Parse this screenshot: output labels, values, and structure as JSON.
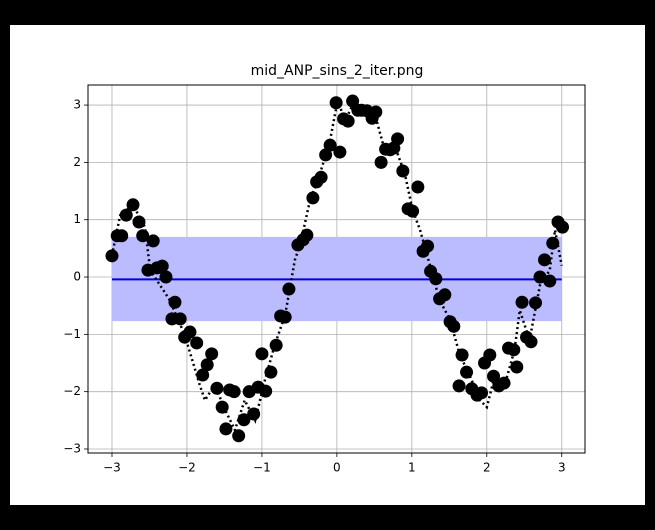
{
  "chart_data": {
    "type": "scatter",
    "title": "mid_ANP_sins_2_iter.png",
    "xlim": [
      -3.32,
      3.31
    ],
    "ylim": [
      -3.07,
      3.35
    ],
    "xticks": [
      {
        "value": -3,
        "label": "−3"
      },
      {
        "value": -2,
        "label": "−2"
      },
      {
        "value": -1,
        "label": "−1"
      },
      0,
      1,
      2,
      3
    ],
    "yticks": [
      {
        "value": -3,
        "label": "−3"
      },
      {
        "value": -2,
        "label": "−2"
      },
      {
        "value": -1,
        "label": "−1"
      },
      0,
      1,
      2,
      3
    ],
    "grid": true,
    "band": {
      "color": "#bbbbff",
      "x": [
        -3,
        3
      ],
      "lower": [
        -0.77,
        -0.77
      ],
      "upper": [
        0.7,
        0.7
      ]
    },
    "mean_line": {
      "color": "#0000dd",
      "x": [
        -3,
        3
      ],
      "y": [
        -0.04,
        -0.04
      ]
    },
    "dotted_line": {
      "color": "#000000",
      "x": [
        -3.0,
        -2.89,
        -2.72,
        -2.56,
        -2.49,
        -2.23,
        -2.03,
        -1.83,
        -1.76,
        -1.63,
        -1.49,
        -1.36,
        -1.23,
        -1.09,
        -0.96,
        -0.83,
        -0.69,
        -0.56,
        -0.49,
        -0.36,
        -0.23,
        -0.09,
        0.01,
        0.11,
        0.24,
        0.37,
        0.51,
        0.64,
        0.77,
        0.91,
        1.01,
        1.11,
        1.24,
        1.37,
        1.51,
        1.64,
        1.77,
        1.91,
        2.0,
        2.11,
        2.24,
        2.37,
        2.44,
        2.57,
        2.71,
        2.84,
        2.91,
        3.0
      ],
      "y": [
        0.38,
        1.08,
        1.26,
        0.87,
        0.12,
        -0.4,
        -1.01,
        -1.88,
        -2.15,
        -1.88,
        -2.32,
        -2.67,
        -2.15,
        -2.5,
        -1.8,
        -1.19,
        -0.66,
        0.3,
        0.56,
        1.33,
        1.78,
        2.39,
        3.08,
        2.73,
        3.08,
        2.83,
        2.83,
        2.2,
        2.3,
        1.78,
        1.17,
        0.82,
        0.21,
        -0.4,
        -0.75,
        -1.36,
        -1.71,
        -2.15,
        -2.27,
        -1.71,
        -1.88,
        -1.27,
        -0.58,
        -1.1,
        -0.14,
        0.12,
        0.82,
        0.2
      ]
    },
    "points": {
      "color": "#000000",
      "x": [
        -3.0,
        -2.93,
        -2.87,
        -2.81,
        -2.72,
        -2.64,
        -2.59,
        -2.52,
        -2.45,
        -2.4,
        -2.33,
        -2.28,
        -2.2,
        -2.16,
        -2.09,
        -2.03,
        -1.96,
        -1.87,
        -1.79,
        -1.73,
        -1.67,
        -1.6,
        -1.53,
        -1.48,
        -1.43,
        -1.37,
        -1.31,
        -1.24,
        -1.17,
        -1.11,
        -1.05,
        -1.0,
        -0.95,
        -0.88,
        -0.81,
        -0.75,
        -0.69,
        -0.64,
        -0.52,
        -0.45,
        -0.4,
        -0.32,
        -0.27,
        -0.21,
        -0.15,
        -0.09,
        -0.01,
        0.04,
        0.09,
        0.15,
        0.21,
        0.28,
        0.33,
        0.4,
        0.47,
        0.52,
        0.59,
        0.65,
        0.71,
        0.76,
        0.81,
        0.88,
        0.95,
        1.01,
        1.08,
        1.15,
        1.21,
        1.25,
        1.32,
        1.37,
        1.44,
        1.51,
        1.56,
        1.63,
        1.67,
        1.73,
        1.8,
        1.87,
        1.93,
        1.97,
        2.04,
        2.09,
        2.16,
        2.23,
        2.29,
        2.36,
        2.4,
        2.47,
        2.53,
        2.59,
        2.65,
        2.71,
        2.77,
        2.84,
        2.88,
        2.95,
        3.01
      ],
      "y": [
        0.37,
        0.72,
        0.72,
        1.08,
        1.26,
        0.96,
        0.72,
        0.12,
        0.63,
        0.16,
        0.19,
        0.0,
        -0.73,
        -0.44,
        -0.73,
        -1.05,
        -0.96,
        -1.15,
        -1.71,
        -1.53,
        -1.34,
        -1.94,
        -2.27,
        -2.65,
        -1.97,
        -2.0,
        -2.77,
        -2.49,
        -2.0,
        -2.39,
        -1.92,
        -1.34,
        -1.99,
        -1.66,
        -1.19,
        -0.68,
        -0.7,
        -0.21,
        0.56,
        0.65,
        0.73,
        1.38,
        1.66,
        1.74,
        2.13,
        2.3,
        3.04,
        2.18,
        2.76,
        2.72,
        3.07,
        2.91,
        2.91,
        2.9,
        2.77,
        2.88,
        2.0,
        2.23,
        2.22,
        2.25,
        2.41,
        1.85,
        1.19,
        1.15,
        1.57,
        0.45,
        0.54,
        0.1,
        -0.03,
        -0.38,
        -0.31,
        -0.78,
        -0.86,
        -1.9,
        -1.36,
        -1.66,
        -1.95,
        -2.06,
        -2.02,
        -1.5,
        -1.36,
        -1.73,
        -1.9,
        -1.85,
        -1.24,
        -1.27,
        -1.57,
        -0.44,
        -1.05,
        -1.13,
        -0.45,
        0.0,
        0.3,
        -0.07,
        0.59,
        0.96,
        0.87
      ]
    }
  }
}
